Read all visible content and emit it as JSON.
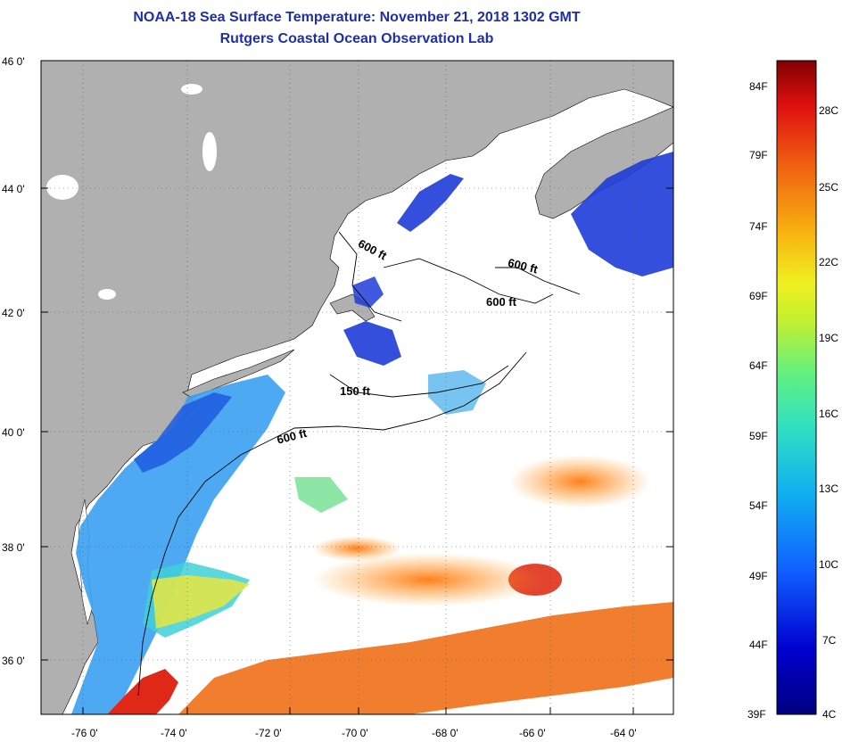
{
  "title": "NOAA-18 Sea Surface Temperature:  November 21, 2018 1302 GMT",
  "subtitle": "Rutgers Coastal Ocean Observation Lab",
  "axes": {
    "lat_labels": [
      "46 0'",
      "44 0'",
      "42 0'",
      "40 0'",
      "38 0'",
      "36 0'"
    ],
    "lon_labels": [
      "-76 0'",
      "-74 0'",
      "-72 0'",
      "-70 0'",
      "-68 0'",
      "-66 0'",
      "-64 0'"
    ]
  },
  "contours": {
    "label_600a": "600 ft",
    "label_600b": "600 ft",
    "label_600c": "600 ft",
    "label_600d": "600 ft",
    "label_150": "150 ft"
  },
  "colorbar": {
    "fahrenheit": [
      "84F",
      "79F",
      "74F",
      "69F",
      "64F",
      "59F",
      "54F",
      "49F",
      "44F",
      "39F"
    ],
    "celsius": [
      "28C",
      "25C",
      "22C",
      "19C",
      "16C",
      "13C",
      "10C",
      "7C",
      "4C"
    ]
  },
  "colors": {
    "land": "#b0b0b0",
    "title": "#1f2fa8",
    "cold": "#1e3cd8",
    "warm": "#e85a10"
  }
}
